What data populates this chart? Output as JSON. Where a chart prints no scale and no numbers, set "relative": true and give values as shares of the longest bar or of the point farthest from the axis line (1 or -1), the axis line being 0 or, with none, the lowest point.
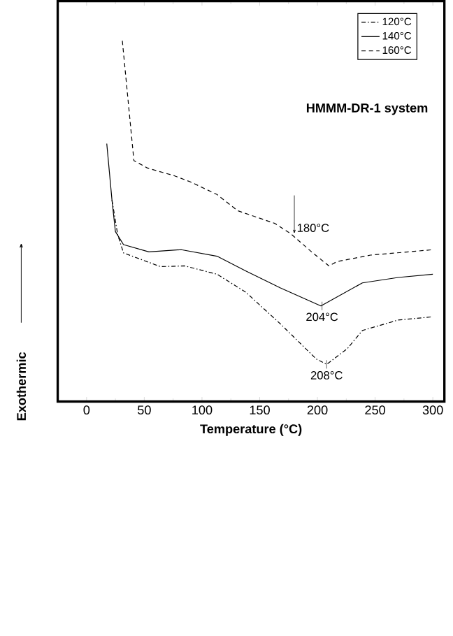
{
  "chart_data": {
    "type": "line",
    "relative": true,
    "xlabel": "Temperature (°C)",
    "ylabel": "Exothermic",
    "xlim": [
      -25,
      310
    ],
    "xticks": [
      0,
      50,
      100,
      150,
      200,
      250,
      300
    ],
    "legend": "top right",
    "grid": false,
    "series": [
      {
        "name": "120°C",
        "color": "#000000",
        "line_style": "dashdot",
        "x": [
          22,
          27,
          32,
          64,
          85,
          113,
          138,
          168,
          199,
          208,
          226,
          239,
          270,
          300
        ],
        "values": [
          0.559,
          0.462,
          0.412,
          0.374,
          0.376,
          0.353,
          0.303,
          0.215,
          0.118,
          0.103,
          0.147,
          0.197,
          0.226,
          0.235
        ]
      },
      {
        "name": "140°C",
        "color": "#000000",
        "line_style": "solid",
        "x": [
          17.5,
          22,
          25,
          32,
          54,
          82,
          113,
          138,
          168,
          203,
          239,
          270,
          300
        ],
        "values": [
          0.715,
          0.559,
          0.471,
          0.435,
          0.415,
          0.421,
          0.403,
          0.362,
          0.315,
          0.265,
          0.329,
          0.344,
          0.353
        ]
      },
      {
        "name": "160°C",
        "color": "#000000",
        "line_style": "dashed",
        "x": [
          31,
          41,
          53,
          76,
          90,
          113,
          131,
          163,
          177,
          196,
          210,
          217,
          246,
          279,
          300
        ],
        "values": [
          1,
          0.668,
          0.647,
          0.626,
          0.609,
          0.574,
          0.529,
          0.494,
          0.465,
          0.412,
          0.376,
          0.388,
          0.406,
          0.415,
          0.421
        ]
      }
    ],
    "annotations": [
      "HMMM-DR-1 system",
      {
        "text": "180°C",
        "x": 180,
        "y": 0.46
      },
      {
        "text": "204°C",
        "x": 204,
        "y": 0.265
      },
      {
        "text": "208°C",
        "x": 208,
        "y": 0.103
      }
    ]
  }
}
